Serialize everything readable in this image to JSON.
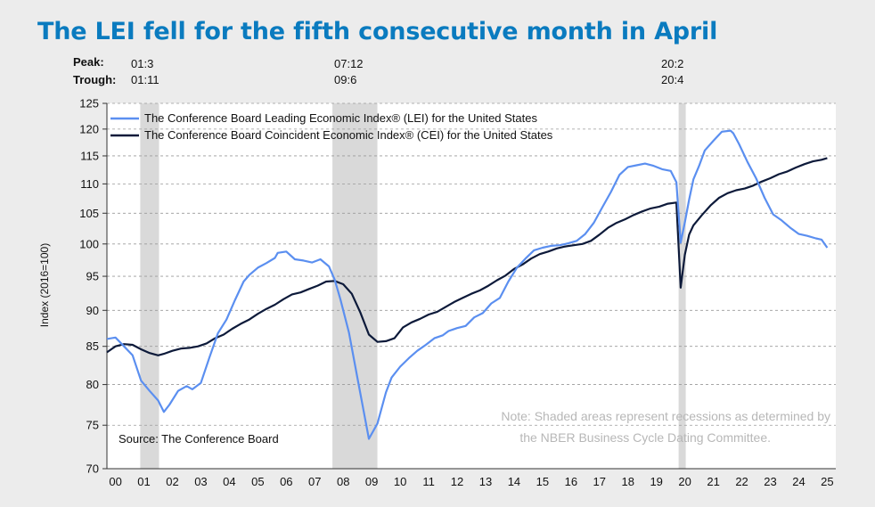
{
  "title": "The LEI fell for the fifth consecutive month in April",
  "peak_trough": {
    "peak_label": "Peak:",
    "trough_label": "Trough:",
    "recessions": [
      {
        "peak": "01:3",
        "trough": "01:11"
      },
      {
        "peak": "07:12",
        "trough": "09:6"
      },
      {
        "peak": "20:2",
        "trough": "20:4"
      }
    ]
  },
  "source": "Source: The Conference Board",
  "note": [
    "Note: Shaded areas represent recessions as determined by",
    "the NBER Business Cycle Dating Committee."
  ],
  "colors": {
    "lei": "#5b8ff0",
    "cei": "#0d1a3a",
    "recession": "#d9d9d9",
    "title": "#0a7bbf",
    "note": "#b7b7b7"
  },
  "chart_data": {
    "type": "line",
    "ylabel": "Index (2016=100)",
    "ylim": [
      70,
      125
    ],
    "yticks": [
      70,
      75,
      80,
      85,
      90,
      95,
      100,
      105,
      110,
      115,
      120,
      125
    ],
    "y_scale": "log",
    "xlim": [
      2000.0,
      2025.6
    ],
    "xtick_labels": [
      "00",
      "01",
      "02",
      "03",
      "04",
      "05",
      "06",
      "07",
      "08",
      "09",
      "10",
      "11",
      "12",
      "13",
      "14",
      "15",
      "16",
      "17",
      "18",
      "19",
      "20",
      "21",
      "22",
      "23",
      "24",
      "25"
    ],
    "grid": "horizontal dashed",
    "legend_position": "top-left",
    "recessions": [
      [
        2001.17,
        2001.83
      ],
      [
        2007.92,
        2009.5
      ],
      [
        2020.08,
        2020.33
      ]
    ],
    "series": [
      {
        "name": "The Conference Board Leading Economic Index® (LEI) for the United States",
        "color": "#5b8ff0",
        "x": [
          2000.0,
          2000.3,
          2000.6,
          2000.9,
          2001.2,
          2001.5,
          2001.8,
          2002.0,
          2002.2,
          2002.5,
          2002.8,
          2003.0,
          2003.3,
          2003.6,
          2003.9,
          2004.2,
          2004.5,
          2004.8,
          2005.0,
          2005.3,
          2005.6,
          2005.9,
          2006.0,
          2006.3,
          2006.6,
          2006.9,
          2007.2,
          2007.5,
          2007.8,
          2008.0,
          2008.2,
          2008.5,
          2008.8,
          2009.0,
          2009.2,
          2009.5,
          2009.8,
          2010.0,
          2010.3,
          2010.6,
          2010.9,
          2011.2,
          2011.5,
          2011.8,
          2012.0,
          2012.3,
          2012.6,
          2012.9,
          2013.2,
          2013.5,
          2013.8,
          2014.1,
          2014.4,
          2014.7,
          2015.0,
          2015.3,
          2015.6,
          2015.9,
          2016.2,
          2016.5,
          2016.8,
          2017.1,
          2017.4,
          2017.7,
          2018.0,
          2018.3,
          2018.6,
          2018.9,
          2019.2,
          2019.5,
          2019.8,
          2020.0,
          2020.15,
          2020.3,
          2020.45,
          2020.6,
          2020.8,
          2021.0,
          2021.3,
          2021.6,
          2021.9,
          2022.0,
          2022.2,
          2022.5,
          2022.8,
          2023.1,
          2023.4,
          2023.7,
          2024.0,
          2024.3,
          2024.6,
          2024.9,
          2025.1,
          2025.3
        ],
        "y": [
          86.0,
          86.2,
          85.0,
          83.8,
          80.5,
          79.2,
          78.0,
          76.6,
          77.5,
          79.2,
          79.8,
          79.4,
          80.2,
          83.5,
          86.8,
          88.7,
          91.5,
          94.2,
          95.2,
          96.3,
          97.0,
          97.8,
          98.6,
          98.8,
          97.6,
          97.4,
          97.1,
          97.6,
          96.5,
          94.5,
          91.6,
          86.9,
          80.8,
          77.0,
          73.4,
          75.2,
          79.0,
          80.9,
          82.3,
          83.4,
          84.4,
          85.2,
          86.1,
          86.5,
          87.1,
          87.5,
          87.8,
          89.0,
          89.6,
          91.0,
          91.8,
          94.2,
          96.3,
          97.7,
          99.0,
          99.4,
          99.7,
          99.8,
          100.1,
          100.5,
          101.6,
          103.4,
          106.0,
          108.6,
          111.6,
          113.0,
          113.3,
          113.6,
          113.2,
          112.6,
          112.3,
          110.3,
          100.2,
          103.5,
          107.3,
          110.8,
          113.2,
          116.0,
          117.8,
          119.5,
          119.7,
          119.2,
          117.2,
          113.9,
          111.0,
          107.6,
          104.8,
          103.8,
          102.6,
          101.6,
          101.3,
          100.9,
          100.7,
          99.4
        ]
      },
      {
        "name": "The Conference Board Coincident Economic Index® (CEI) for the United States",
        "color": "#0d1a3a",
        "x": [
          2000.0,
          2000.3,
          2000.6,
          2000.9,
          2001.2,
          2001.5,
          2001.8,
          2002.0,
          2002.3,
          2002.6,
          2002.9,
          2003.2,
          2003.5,
          2003.8,
          2004.1,
          2004.4,
          2004.7,
          2005.0,
          2005.3,
          2005.6,
          2005.9,
          2006.2,
          2006.5,
          2006.8,
          2007.1,
          2007.4,
          2007.7,
          2008.0,
          2008.3,
          2008.6,
          2008.9,
          2009.2,
          2009.5,
          2009.8,
          2010.1,
          2010.4,
          2010.7,
          2011.0,
          2011.3,
          2011.6,
          2011.9,
          2012.2,
          2012.5,
          2012.8,
          2013.1,
          2013.4,
          2013.7,
          2014.0,
          2014.3,
          2014.6,
          2014.9,
          2015.2,
          2015.5,
          2015.8,
          2016.1,
          2016.4,
          2016.7,
          2017.0,
          2017.3,
          2017.6,
          2017.9,
          2018.2,
          2018.5,
          2018.8,
          2019.1,
          2019.4,
          2019.7,
          2020.0,
          2020.15,
          2020.3,
          2020.45,
          2020.6,
          2020.9,
          2021.2,
          2021.5,
          2021.8,
          2022.1,
          2022.4,
          2022.7,
          2023.0,
          2023.3,
          2023.6,
          2023.9,
          2024.2,
          2024.5,
          2024.8,
          2025.1,
          2025.3
        ],
        "y": [
          84.2,
          85.0,
          85.3,
          85.2,
          84.6,
          84.1,
          83.8,
          84.0,
          84.4,
          84.7,
          84.8,
          85.0,
          85.4,
          86.1,
          86.6,
          87.4,
          88.1,
          88.7,
          89.5,
          90.2,
          90.8,
          91.6,
          92.3,
          92.6,
          93.1,
          93.6,
          94.2,
          94.3,
          93.8,
          92.4,
          89.7,
          86.6,
          85.6,
          85.7,
          86.1,
          87.6,
          88.3,
          88.8,
          89.4,
          89.8,
          90.5,
          91.2,
          91.8,
          92.4,
          92.9,
          93.6,
          94.4,
          95.1,
          96.1,
          96.8,
          97.7,
          98.4,
          98.8,
          99.3,
          99.6,
          99.8,
          100.0,
          100.5,
          101.5,
          102.6,
          103.4,
          104.0,
          104.7,
          105.3,
          105.8,
          106.1,
          106.6,
          106.8,
          93.3,
          98.3,
          101.5,
          103.0,
          104.7,
          106.3,
          107.6,
          108.4,
          108.9,
          109.2,
          109.7,
          110.4,
          111.0,
          111.7,
          112.2,
          112.9,
          113.5,
          114.0,
          114.3,
          114.6
        ]
      }
    ]
  }
}
